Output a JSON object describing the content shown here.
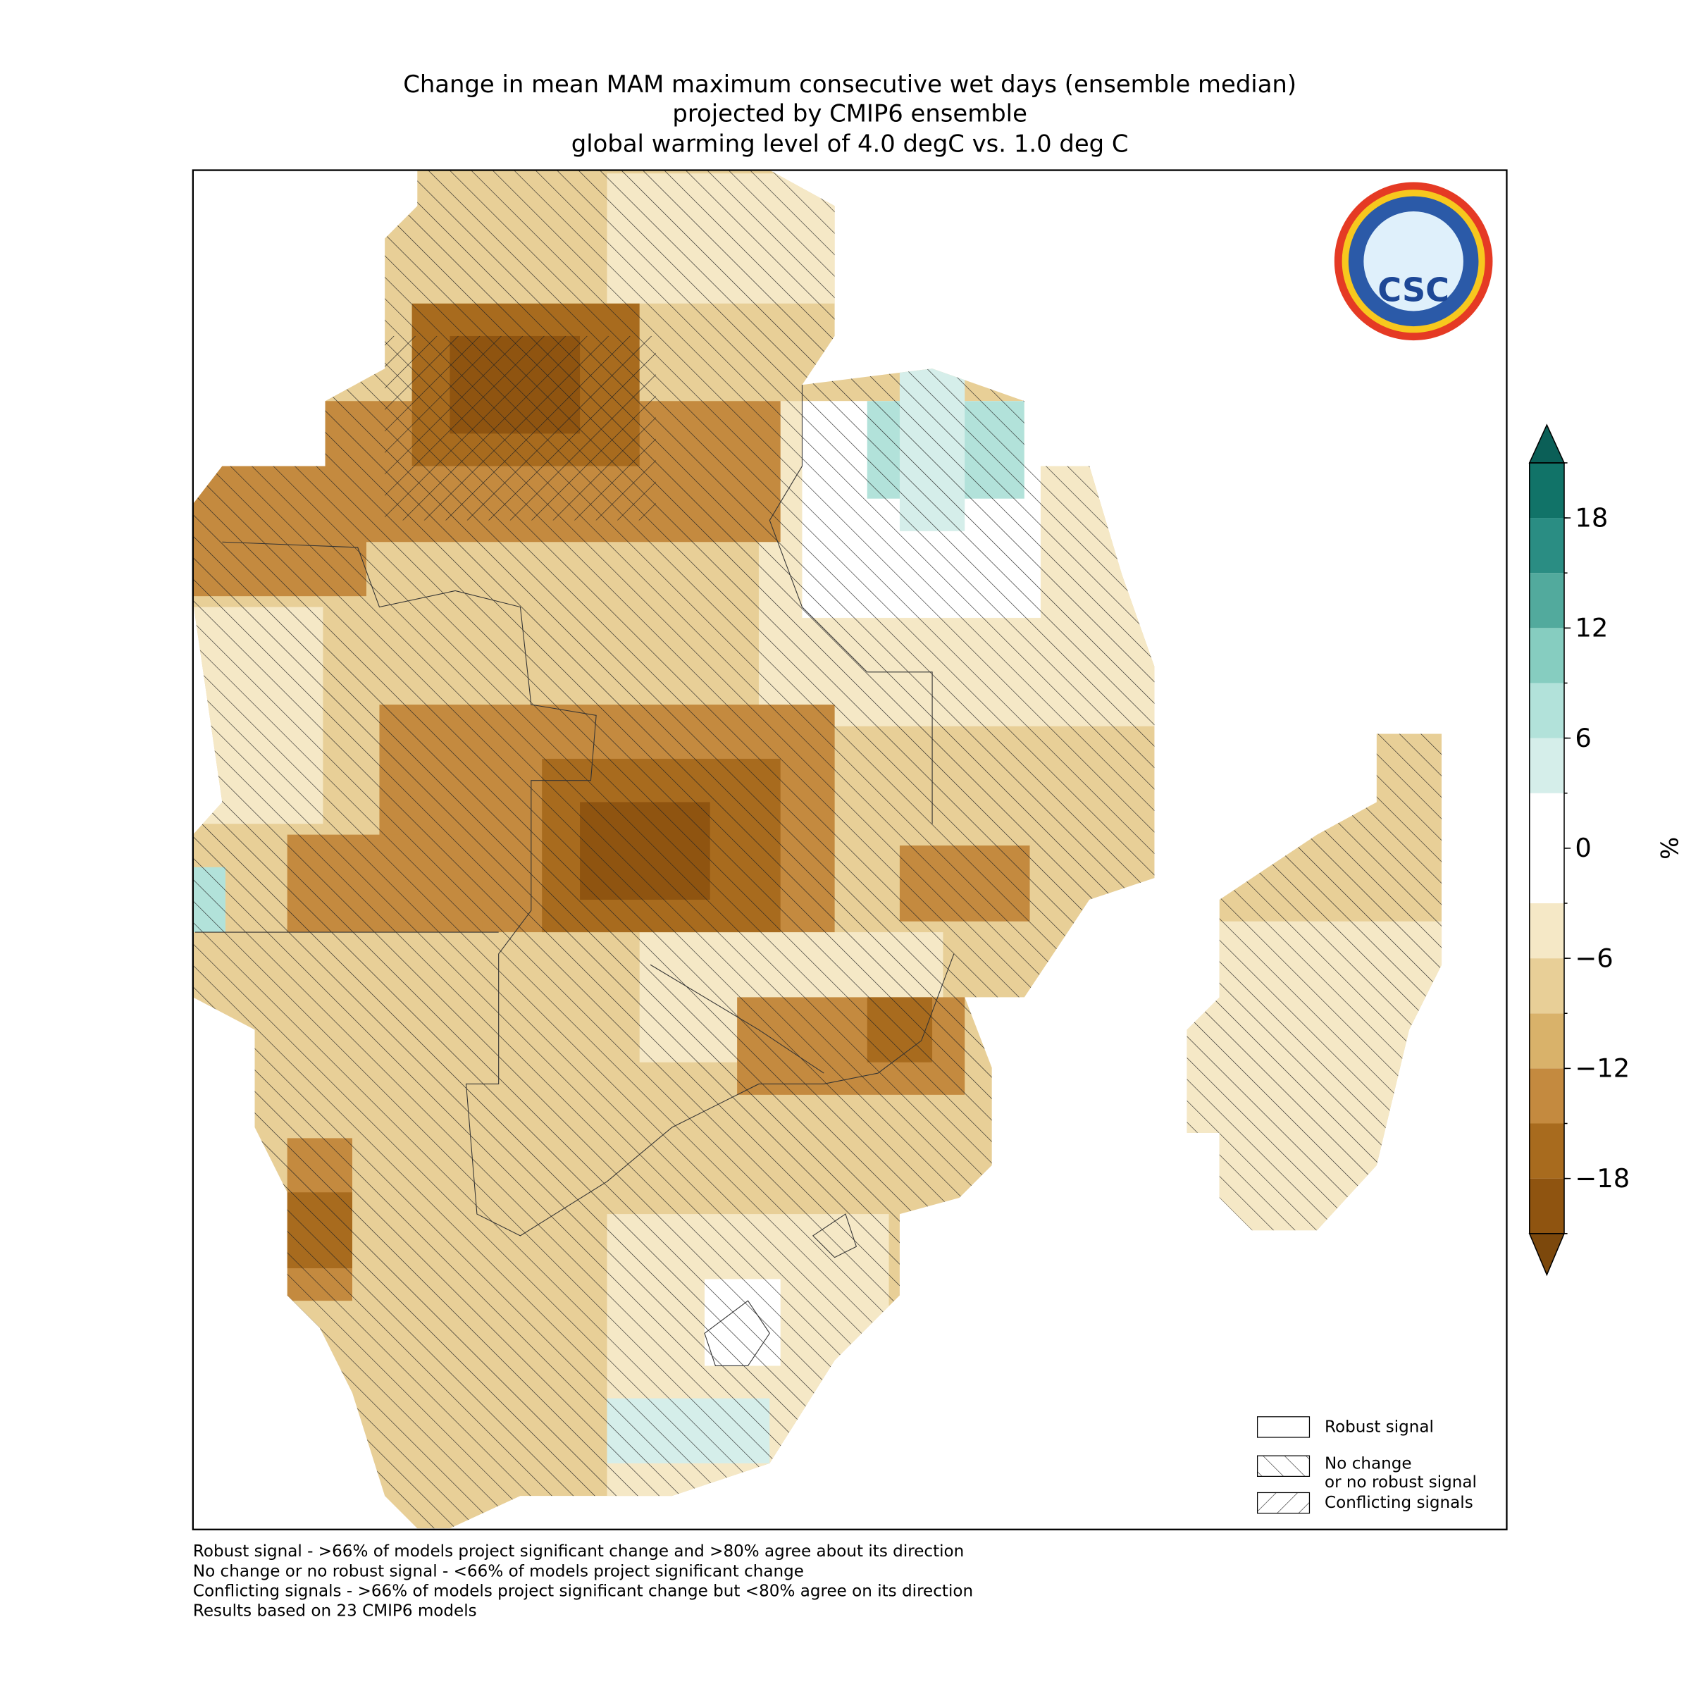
{
  "map": {
    "title": [
      "Change in mean MAM maximum consecutive wet days (ensemble median)",
      "projected by CMIP6 ensemble",
      "global warming level of 4.0 degC vs. 1.0 deg C"
    ],
    "logo": {
      "text": "CSC"
    },
    "colorbar": {
      "label": "%",
      "levels": [
        -21,
        -18,
        -15,
        -12,
        -9,
        -6,
        -3,
        0,
        3,
        6,
        9,
        12,
        15,
        18,
        21
      ],
      "colors": [
        "#8f5410",
        "#a86b1e",
        "#c48a3f",
        "#d9b26a",
        "#e8cf97",
        "#f5e8c6",
        "#ffffff",
        "#ffffff",
        "#d5eeea",
        "#b2e2da",
        "#86cdc0",
        "#52aa9d",
        "#2a8d83",
        "#117368"
      ],
      "under_color": "#7c480c",
      "over_color": "#0b5f57",
      "ticks": [
        {
          "value": -18,
          "label": "−18"
        },
        {
          "value": -12,
          "label": "−12"
        },
        {
          "value": -6,
          "label": "−6"
        },
        0,
        6,
        12,
        18
      ]
    },
    "legend": [
      "Robust signal",
      "No change\nor no robust signal",
      "Conflicting signals"
    ],
    "footnotes": [
      "Robust signal - >66% of models project significant change and >80% agree about its direction",
      "No change or no robust signal - <66% of models project significant change",
      "Conflicting signals - >66% of models project significant change but <80% agree on its direction",
      "Results based on 23 CMIP6 models"
    ]
  }
}
